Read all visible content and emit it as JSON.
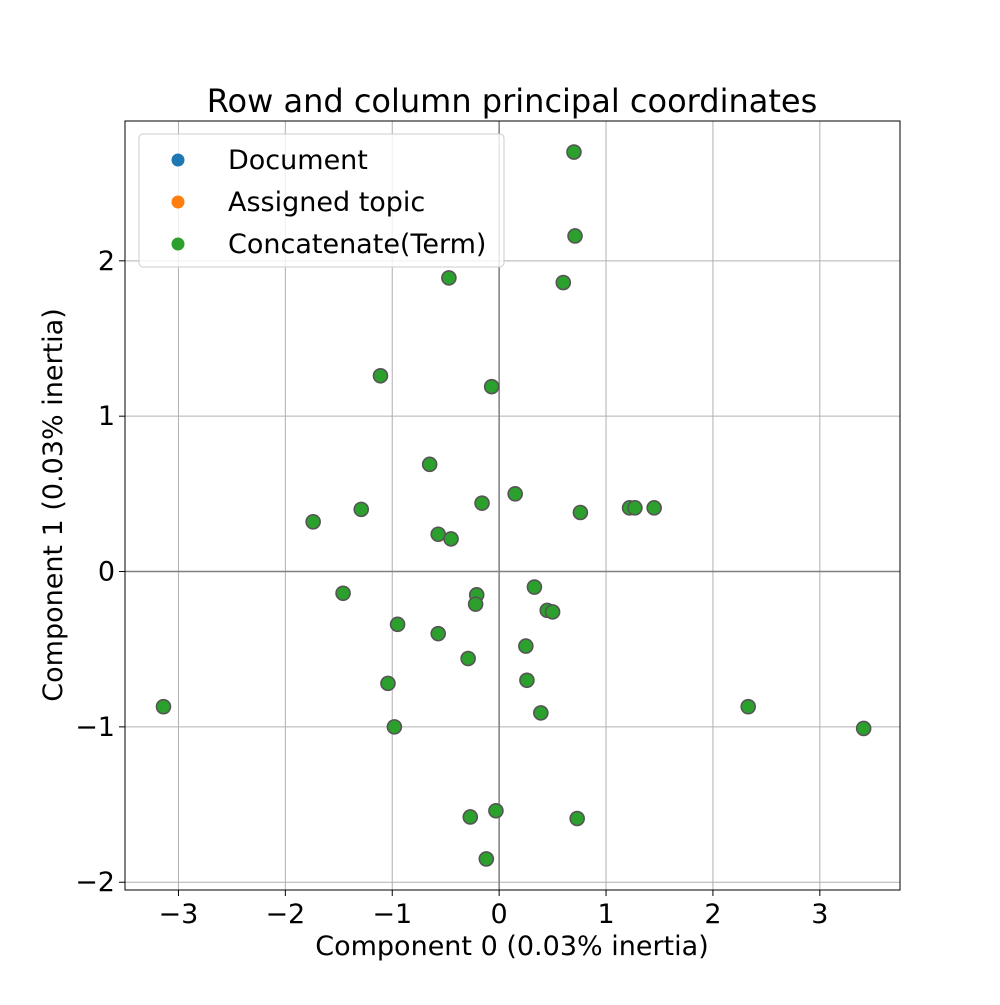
{
  "chart_data": {
    "type": "scatter",
    "title": "Row and column principal coordinates",
    "xlabel": "Component 0 (0.03% inertia)",
    "ylabel": "Component 1 (0.03% inertia)",
    "xlim": [
      -3.5,
      3.75
    ],
    "ylim": [
      -2.05,
      2.9
    ],
    "xticks": [
      -3,
      -2,
      -1,
      0,
      1,
      2,
      3
    ],
    "xtick_labels": [
      "−3",
      "−2",
      "−1",
      "0",
      "1",
      "2",
      "3"
    ],
    "yticks": [
      -2,
      -1,
      0,
      1,
      2
    ],
    "ytick_labels": [
      "−2",
      "−1",
      "0",
      "1",
      "2"
    ],
    "grid": true,
    "legend_position": "top-left",
    "series": [
      {
        "name": "Document",
        "color": "#1f77b4",
        "points": []
      },
      {
        "name": "Assigned topic",
        "color": "#ff7f0e",
        "points": []
      },
      {
        "name": "Concatenate(Term)",
        "color": "#2ca02c",
        "points": [
          [
            0.7,
            2.7
          ],
          [
            0.71,
            2.16
          ],
          [
            0.6,
            1.86
          ],
          [
            -0.47,
            1.89
          ],
          [
            -1.11,
            1.26
          ],
          [
            -0.07,
            1.19
          ],
          [
            -0.65,
            0.69
          ],
          [
            0.15,
            0.5
          ],
          [
            -0.16,
            0.44
          ],
          [
            -1.74,
            0.32
          ],
          [
            -1.29,
            0.4
          ],
          [
            -0.57,
            0.24
          ],
          [
            -0.45,
            0.21
          ],
          [
            0.76,
            0.38
          ],
          [
            1.22,
            0.41
          ],
          [
            1.27,
            0.41
          ],
          [
            1.45,
            0.41
          ],
          [
            -1.46,
            -0.14
          ],
          [
            -0.21,
            -0.15
          ],
          [
            -0.22,
            -0.21
          ],
          [
            0.33,
            -0.1
          ],
          [
            0.45,
            -0.25
          ],
          [
            0.5,
            -0.26
          ],
          [
            -0.95,
            -0.34
          ],
          [
            -0.57,
            -0.4
          ],
          [
            0.25,
            -0.48
          ],
          [
            -0.29,
            -0.56
          ],
          [
            -1.04,
            -0.72
          ],
          [
            0.26,
            -0.7
          ],
          [
            0.39,
            -0.91
          ],
          [
            -3.14,
            -0.87
          ],
          [
            -0.98,
            -1.0
          ],
          [
            2.33,
            -0.87
          ],
          [
            3.41,
            -1.01
          ],
          [
            -0.27,
            -1.58
          ],
          [
            -0.03,
            -1.54
          ],
          [
            0.73,
            -1.59
          ],
          [
            -0.12,
            -1.85
          ]
        ]
      }
    ]
  }
}
